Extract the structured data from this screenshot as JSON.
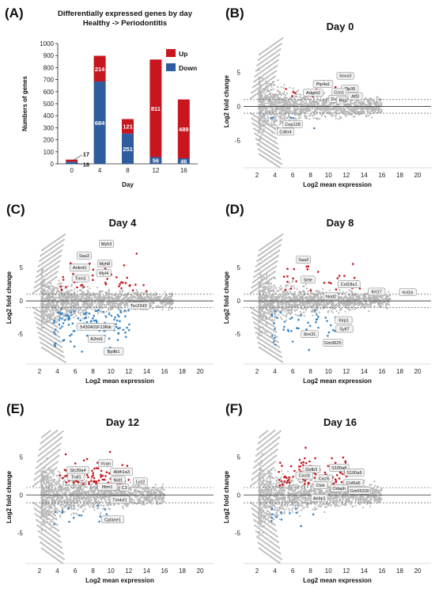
{
  "chart_data": [
    {
      "panel": "(A)",
      "type": "bar",
      "title": "Differentially expressed genes by day",
      "subtitle": "Healthy -> Periodontitis",
      "xlabel": "Day",
      "ylabel": "Numbers of genes",
      "categories": [
        "0",
        "4",
        "8",
        "12",
        "16"
      ],
      "ylim": [
        0,
        1000
      ],
      "yticks": [
        0,
        100,
        200,
        300,
        400,
        500,
        600,
        700,
        800,
        900,
        1000
      ],
      "series": [
        {
          "name": "Down",
          "color": "#2E5C9E",
          "values": [
            18,
            684,
            251,
            56,
            46
          ]
        },
        {
          "name": "Up",
          "color": "#C7161E",
          "values": [
            17,
            214,
            121,
            811,
            489
          ]
        }
      ],
      "legend_position": "top-right"
    },
    {
      "panel": "(B)",
      "type": "scatter",
      "title": "Day 0",
      "xlabel": "Log2 mean expression",
      "ylabel": "Log2 fold change",
      "xticks": [
        2,
        4,
        6,
        8,
        10,
        12,
        14,
        16,
        18,
        20
      ],
      "yticks": [
        -5,
        0,
        5
      ],
      "xlim": [
        0.5,
        21.5
      ],
      "ylim": [
        -9,
        10.5
      ],
      "n_up": 17,
      "n_down": 18,
      "stretch": 0.25,
      "xmax_points": 16,
      "genes": [
        {
          "name": "Socs3",
          "x": 11.9,
          "y": 4.5
        },
        {
          "name": "Ptp4a1",
          "x": 9.4,
          "y": 3.3
        },
        {
          "name": "Zfp36",
          "x": 12.4,
          "y": 2.6
        },
        {
          "name": "Adgrb2",
          "x": 8.3,
          "y": 2.0
        },
        {
          "name": "Ccn1",
          "x": 11.2,
          "y": 2.1
        },
        {
          "name": "Dusp6",
          "x": 11.0,
          "y": 1.1
        },
        {
          "name": "Btg2",
          "x": 11.7,
          "y": 0.9
        },
        {
          "name": "Atf3",
          "x": 13.0,
          "y": 1.5
        },
        {
          "name": "Cep128",
          "x": 6.0,
          "y": -2.6
        },
        {
          "name": "Cdhr4",
          "x": 5.2,
          "y": -3.7
        }
      ]
    },
    {
      "panel": "(C)",
      "type": "scatter",
      "title": "Day 4",
      "xlabel": "Log2 mean expression",
      "ylabel": "Log2 fold change",
      "xticks": [
        2,
        4,
        6,
        8,
        10,
        12,
        14,
        16,
        18,
        20
      ],
      "yticks": [
        -5,
        0,
        5
      ],
      "xlim": [
        0.5,
        21.5
      ],
      "ylim": [
        -9.5,
        10.5
      ],
      "n_up": 214,
      "n_down": 684,
      "stretch": 1.0,
      "xmax_points": 17,
      "genes": [
        {
          "name": "Myh3",
          "x": 9.5,
          "y": 8.6
        },
        {
          "name": "Saa3",
          "x": 7.0,
          "y": 6.8
        },
        {
          "name": "Myh8",
          "x": 9.3,
          "y": 5.6
        },
        {
          "name": "Ankrd1",
          "x": 6.5,
          "y": 5.0
        },
        {
          "name": "Myl4",
          "x": 9.2,
          "y": 4.2
        },
        {
          "name": "Tnni1",
          "x": 6.6,
          "y": 3.4
        },
        {
          "name": "Tsc22d3",
          "x": 13.1,
          "y": -0.7
        },
        {
          "name": "5430401F13Rik",
          "x": 8.3,
          "y": -3.9
        },
        {
          "name": "A2ml1",
          "x": 8.4,
          "y": -5.7
        },
        {
          "name": "Bpifb1",
          "x": 10.3,
          "y": -7.6
        }
      ]
    },
    {
      "panel": "(D)",
      "type": "scatter",
      "title": "Day 8",
      "xlabel": "Log2 mean expression",
      "ylabel": "Log2 fold change",
      "xticks": [
        2,
        4,
        6,
        8,
        10,
        12,
        14,
        16,
        18,
        20
      ],
      "yticks": [
        -5,
        0,
        5
      ],
      "xlim": [
        0.5,
        21.5
      ],
      "ylim": [
        -9.5,
        10.5
      ],
      "n_up": 121,
      "n_down": 251,
      "stretch": 0.8,
      "xmax_points": 17,
      "genes": [
        {
          "name": "Saa3",
          "x": 7.2,
          "y": 6.2
        },
        {
          "name": "Sele",
          "x": 7.7,
          "y": 3.2
        },
        {
          "name": "Col18a1",
          "x": 12.3,
          "y": 2.5
        },
        {
          "name": "Krt17",
          "x": 15.4,
          "y": 1.4
        },
        {
          "name": "Krt16",
          "x": 18.9,
          "y": 1.3
        },
        {
          "name": "Nod2",
          "x": 10.3,
          "y": 0.7
        },
        {
          "name": "Xirp1",
          "x": 11.7,
          "y": -2.9
        },
        {
          "name": "Sytl7",
          "x": 11.8,
          "y": -4.2
        },
        {
          "name": "Snx31",
          "x": 7.9,
          "y": -5.0
        },
        {
          "name": "Gm3625",
          "x": 10.5,
          "y": -6.3
        }
      ]
    },
    {
      "panel": "(E)",
      "type": "scatter",
      "title": "Day 12",
      "xlabel": "Log2 mean expression",
      "ylabel": "Log2 fold change",
      "xticks": [
        2,
        4,
        6,
        8,
        10,
        12,
        14,
        16,
        18,
        20
      ],
      "yticks": [
        -5,
        0,
        5
      ],
      "xlim": [
        0.5,
        21.5
      ],
      "ylim": [
        -9,
        8.5
      ],
      "n_up": 811,
      "n_down": 56,
      "stretch": 0.3,
      "xmax_points": 16,
      "genes": [
        {
          "name": "Vcan",
          "x": 9.4,
          "y": 4.2
        },
        {
          "name": "Slc39a4",
          "x": 6.3,
          "y": 3.3
        },
        {
          "name": "Aldh1a3",
          "x": 11.2,
          "y": 3.1
        },
        {
          "name": "Traf1",
          "x": 6.1,
          "y": 2.4
        },
        {
          "name": "Nid1",
          "x": 10.8,
          "y": 2.0
        },
        {
          "name": "Lyz2",
          "x": 13.3,
          "y": 1.8
        },
        {
          "name": "Ifitm1",
          "x": 9.6,
          "y": 1.1
        },
        {
          "name": "C3",
          "x": 11.5,
          "y": 1.0
        },
        {
          "name": "Tm4sf1",
          "x": 11.0,
          "y": -0.6
        },
        {
          "name": "Cplane1",
          "x": 10.2,
          "y": -3.2
        }
      ]
    },
    {
      "panel": "(F)",
      "type": "scatter",
      "title": "Day 16",
      "xlabel": "Log2 mean expression",
      "ylabel": "Log2 fold change",
      "xticks": [
        2,
        4,
        6,
        8,
        10,
        12,
        14,
        16,
        18,
        20
      ],
      "yticks": [
        -5,
        0,
        5
      ],
      "xlim": [
        0.5,
        21.5
      ],
      "ylim": [
        -9,
        8.5
      ],
      "n_up": 489,
      "n_down": 46,
      "stretch": 0.3,
      "xmax_points": 16,
      "genes": [
        {
          "name": "Defb3",
          "x": 8.1,
          "y": 3.4
        },
        {
          "name": "S100a8",
          "x": 11.2,
          "y": 3.6
        },
        {
          "name": "S100a9",
          "x": 12.9,
          "y": 3.0
        },
        {
          "name": "Cxcl3",
          "x": 7.3,
          "y": 2.6
        },
        {
          "name": "Cxcl5",
          "x": 9.5,
          "y": 2.2
        },
        {
          "name": "Col6a5",
          "x": 12.8,
          "y": 1.6
        },
        {
          "name": "Ctsk",
          "x": 9.1,
          "y": 1.3
        },
        {
          "name": "Odaph",
          "x": 11.2,
          "y": 0.9
        },
        {
          "name": "Gm55330",
          "x": 13.5,
          "y": 0.6
        },
        {
          "name": "Aebp1",
          "x": 9.0,
          "y": -0.4
        }
      ]
    }
  ],
  "colors": {
    "up": "#C7161E",
    "down": "#2E5C9E",
    "ns": "#B7B7B7",
    "scatter_down": "#3A86C4"
  }
}
